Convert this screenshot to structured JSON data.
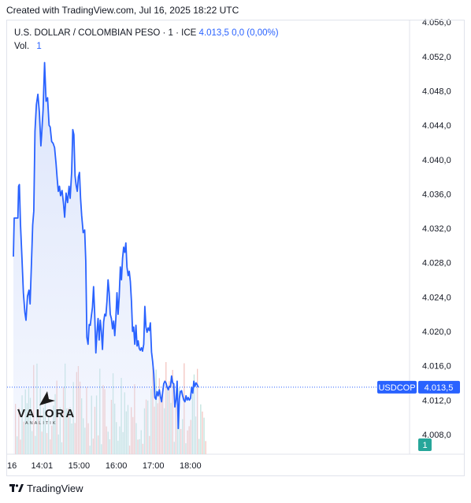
{
  "header": {
    "created_text": "Created with TradingView.com, Jul 16, 2025 18:22 UTC"
  },
  "legend": {
    "symbol_title": "U.S. DOLLAR / COLOMBIAN PESO · 1 · ICE",
    "last_value": "4.013,5",
    "change": "0,0 (0,00%)",
    "volume_label": "Vol.",
    "volume_value": "1"
  },
  "badges": {
    "ticker": "USDCOP",
    "price": "4.013,5",
    "volume": "1"
  },
  "footer": {
    "brand": "TradingView"
  },
  "watermark": {
    "word": "VALORA",
    "sub": "ANALITIK"
  },
  "colors": {
    "line": "#2962ff",
    "area": "#dbe4fb",
    "vol_up": "#f4c5c0",
    "vol_down": "#bfe3dd",
    "badge": "#2962ff",
    "badge_vol": "#26a69a"
  },
  "chart_data": {
    "type": "area",
    "x_ticks": [
      "16",
      "14:01",
      "15:00",
      "16:00",
      "17:00",
      "18:00"
    ],
    "y_ticks": [
      "4.008,0",
      "4.012,0",
      "4.016,0",
      "4.020,0",
      "4.024,0",
      "4.028,0",
      "4.032,0",
      "4.036,0",
      "4.040,0",
      "4.044,0",
      "4.048,0",
      "4.052,0",
      "4.056,0"
    ],
    "ylim": [
      4005.7,
      4056.2
    ],
    "x_range_minutes": [
      -17,
      1065
    ],
    "series": [
      {
        "values": [
          [
            0,
            4028.7
          ],
          [
            2,
            4033.2
          ],
          [
            12,
            4033.2
          ],
          [
            14,
            4036.9
          ],
          [
            16,
            4037.1
          ],
          [
            19,
            4032.5
          ],
          [
            23,
            4028.5
          ],
          [
            27,
            4024.5
          ],
          [
            31,
            4022.2
          ],
          [
            34,
            4021.3
          ],
          [
            38,
            4024.1
          ],
          [
            42,
            4024.8
          ],
          [
            45,
            4023.2
          ],
          [
            48,
            4027.0
          ],
          [
            52,
            4032.4
          ],
          [
            55,
            4034.0
          ],
          [
            58,
            4043.3
          ],
          [
            62,
            4046.4
          ],
          [
            66,
            4047.6
          ],
          [
            70,
            4045.5
          ],
          [
            74,
            4041.6
          ],
          [
            76,
            4042.8
          ],
          [
            80,
            4045.8
          ],
          [
            84,
            4051.3
          ],
          [
            88,
            4046.8
          ],
          [
            92,
            4047.2
          ],
          [
            96,
            4044.0
          ],
          [
            99,
            4043.8
          ],
          [
            103,
            4042.1
          ],
          [
            107,
            4041.9
          ],
          [
            111,
            4041.4
          ],
          [
            115,
            4039.5
          ],
          [
            118,
            4037.8
          ],
          [
            121,
            4036.3
          ],
          [
            124,
            4036.9
          ],
          [
            127,
            4035.8
          ],
          [
            131,
            4036.4
          ],
          [
            135,
            4034.9
          ],
          [
            138,
            4033.3
          ],
          [
            142,
            4036.1
          ],
          [
            146,
            4035.0
          ],
          [
            150,
            4036.9
          ],
          [
            153,
            4035.5
          ],
          [
            157,
            4038.6
          ],
          [
            160,
            4043.5
          ],
          [
            163,
            4042.9
          ],
          [
            166,
            4038.1
          ],
          [
            169,
            4037.0
          ],
          [
            172,
            4036.3
          ],
          [
            175,
            4038.0
          ],
          [
            178,
            4038.5
          ],
          [
            181,
            4035.5
          ],
          [
            184,
            4033.5
          ],
          [
            188,
            4031.5
          ],
          [
            192,
            4031.8
          ],
          [
            195,
            4028.2
          ],
          [
            198,
            4019.3
          ],
          [
            201,
            4018.5
          ],
          [
            204,
            4020.8
          ],
          [
            207,
            4020.7
          ],
          [
            210,
            4021.8
          ],
          [
            213,
            4022.8
          ],
          [
            216,
            4025.2
          ],
          [
            219,
            4022.1
          ],
          [
            222,
            4017.5
          ],
          [
            225,
            4019.8
          ],
          [
            228,
            4021.5
          ],
          [
            231,
            4019.0
          ],
          [
            234,
            4021.3
          ],
          [
            237,
            4020.0
          ],
          [
            240,
            4017.9
          ],
          [
            243,
            4021.1
          ],
          [
            246,
            4022.0
          ],
          [
            249,
            4021.8
          ],
          [
            252,
            4023.5
          ],
          [
            255,
            4026.0
          ],
          [
            258,
            4024.5
          ],
          [
            261,
            4022.0
          ],
          [
            264,
            4021.5
          ],
          [
            267,
            4020.3
          ],
          [
            270,
            4021.2
          ],
          [
            273,
            4019.5
          ],
          [
            276,
            4021.5
          ],
          [
            279,
            4024.5
          ],
          [
            282,
            4022.0
          ],
          [
            285,
            4024.0
          ],
          [
            288,
            4027.5
          ],
          [
            291,
            4026.0
          ],
          [
            294,
            4028.5
          ],
          [
            297,
            4029.8
          ],
          [
            300,
            4029.2
          ],
          [
            303,
            4030.3
          ],
          [
            306,
            4027.5
          ],
          [
            309,
            4026.5
          ],
          [
            312,
            4027.0
          ],
          [
            315,
            4025.8
          ],
          [
            318,
            4023.5
          ],
          [
            321,
            4020.0
          ],
          [
            324,
            4020.5
          ],
          [
            327,
            4018.5
          ],
          [
            330,
            4020.7
          ],
          [
            333,
            4018.3
          ],
          [
            336,
            4018.9
          ],
          [
            339,
            4018.0
          ],
          [
            342,
            4017.8
          ],
          [
            345,
            4018.1
          ],
          [
            348,
            4017.7
          ],
          [
            351,
            4018.5
          ],
          [
            354,
            4022.9
          ],
          [
            357,
            4020.5
          ],
          [
            360,
            4019.9
          ],
          [
            363,
            4020.4
          ],
          [
            366,
            4020.1
          ],
          [
            369,
            4021.0
          ],
          [
            372,
            4017.6
          ],
          [
            375,
            4016.5
          ],
          [
            378,
            4015.1
          ],
          [
            381,
            4012.3
          ],
          [
            384,
            4012.1
          ],
          [
            387,
            4013.0
          ],
          [
            390,
            4012.5
          ],
          [
            393,
            4013.2
          ],
          [
            396,
            4012.4
          ],
          [
            399,
            4011.8
          ],
          [
            402,
            4012.9
          ],
          [
            405,
            4013.9
          ],
          [
            408,
            4014.2
          ],
          [
            411,
            4014.0
          ],
          [
            414,
            4013.5
          ],
          [
            417,
            4013.2
          ],
          [
            420,
            4013.6
          ],
          [
            423,
            4013.5
          ],
          [
            426,
            4014.8
          ],
          [
            429,
            4014.0
          ],
          [
            432,
            4013.9
          ],
          [
            435,
            4011.2
          ],
          [
            438,
            4012.0
          ],
          [
            441,
            4014.2
          ],
          [
            444,
            4008.7
          ],
          [
            447,
            4012.2
          ],
          [
            450,
            4013.0
          ],
          [
            453,
            4013.1
          ],
          [
            456,
            4012.5
          ],
          [
            459,
            4012.0
          ],
          [
            462,
            4011.8
          ],
          [
            465,
            4012.5
          ],
          [
            468,
            4012.0
          ],
          [
            471,
            4012.3
          ],
          [
            474,
            4012.0
          ],
          [
            477,
            4012.2
          ],
          [
            480,
            4013.5
          ],
          [
            483,
            4012.8
          ],
          [
            486,
            4014.2
          ],
          [
            489,
            4013.6
          ],
          [
            492,
            4014.0
          ],
          [
            495,
            4013.8
          ],
          [
            498,
            4013.5
          ]
        ]
      }
    ]
  }
}
